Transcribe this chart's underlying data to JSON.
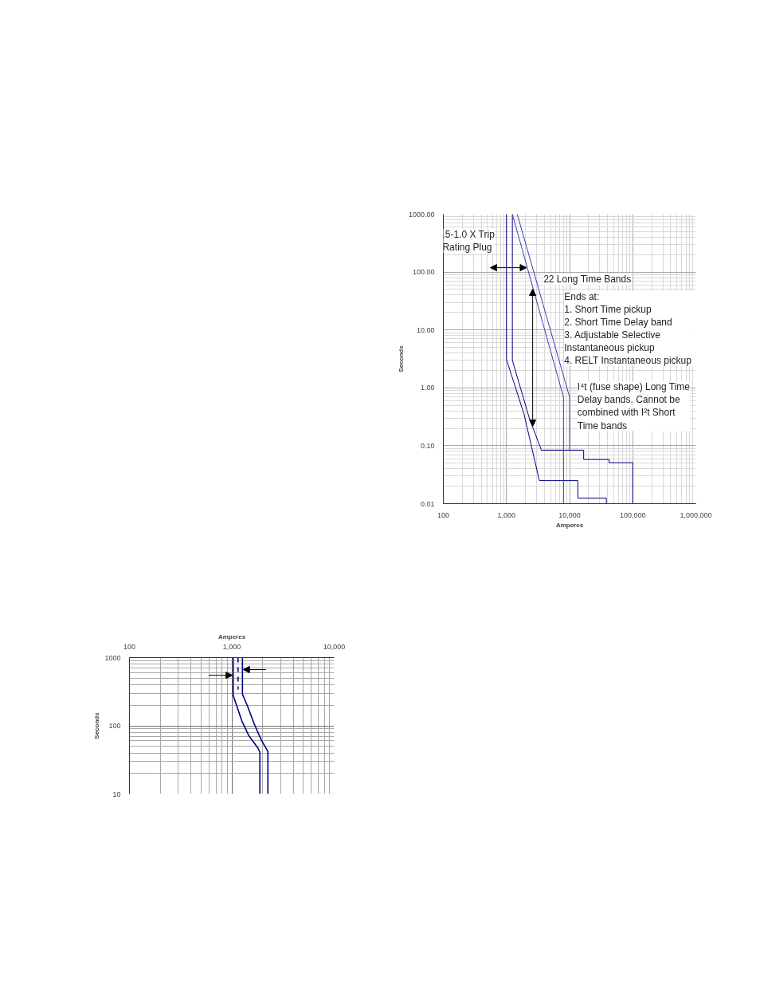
{
  "chart_data": [
    {
      "type": "line",
      "xlabel": "Amperes",
      "ylabel": "Seconds",
      "log": "xy",
      "grid": true,
      "xlim": [
        100,
        1000000
      ],
      "ylim": [
        0.01,
        1000
      ],
      "xticks": [
        100,
        {
          "value": 1000,
          "label": "1,000"
        },
        {
          "value": 10000,
          "label": "10,000"
        },
        {
          "value": 100000,
          "label": "100,000"
        },
        {
          "value": 1000000,
          "label": "1,000,000"
        }
      ],
      "yticks": [
        {
          "value": 0.01,
          "label": "0.01"
        },
        {
          "value": 0.1,
          "label": "0.10"
        },
        {
          "value": 1,
          "label": "1.00"
        },
        {
          "value": 10,
          "label": "10.00"
        },
        {
          "value": 100,
          "label": "100.00"
        },
        {
          "value": 1000,
          "label": "1000.00"
        }
      ],
      "series": [
        {
          "color": "#000080",
          "x": [
            1000,
            1000,
            1900,
            3320,
            13500,
            13500,
            38200,
            38200
          ],
          "values": [
            1000,
            3.1,
            0.35,
            0.025,
            0.025,
            0.0125,
            0.0125,
            0.01
          ]
        },
        {
          "color": "#000080",
          "x": [
            1240,
            1240,
            2300,
            3570,
            16700,
            16700,
            42300,
            42300,
            100000,
            100000
          ],
          "values": [
            1000,
            3.0,
            0.3,
            0.084,
            0.084,
            0.058,
            0.058,
            0.051,
            0.051,
            0.01
          ]
        },
        {
          "color": "#3c3cb4",
          "x": [
            1240,
            8000,
            8000
          ],
          "values": [
            1000,
            0.69,
            0.01
          ]
        },
        {
          "color": "#3c3cb4",
          "x": [
            1480,
            10000,
            10000
          ],
          "values": [
            1000,
            0.69,
            0.084
          ]
        }
      ],
      "annotations": [
        ".5-1.0 X Trip\nRating Plug",
        "22 Long Time Bands",
        "Ends at:\n1.   Short Time pickup\n2.   Short Time Delay band\n3.   Adjustable Selective\n      Instantaneous pickup\n4.   RELT Instantaneous pickup",
        "I⁴t (fuse shape) Long Time\nDelay bands. Cannot be\ncombined with I²t Short\nTime bands"
      ]
    },
    {
      "type": "line",
      "xlabel": "Amperes",
      "ylabel": "Seconds",
      "log": "xy",
      "grid": true,
      "xlim": [
        100,
        10000
      ],
      "ylim": [
        10,
        1000
      ],
      "xticks": [
        100,
        {
          "value": 1000,
          "label": "1,000"
        },
        {
          "value": 10000,
          "label": "10,000"
        }
      ],
      "yticks": [
        10,
        100,
        1000
      ],
      "series": [
        {
          "color": "#000080",
          "x": [
            1030,
            1030,
            1110,
            1250,
            1456,
            1800,
            1880,
            1880
          ],
          "values": [
            1000,
            280,
            201,
            119,
            73,
            47,
            41.4,
            10
          ]
        },
        {
          "color": "#000080",
          "x": [
            1150,
            1150
          ],
          "values": [
            1000,
            340
          ],
          "line_style": "dashed"
        },
        {
          "color": "#000080",
          "x": [
            1270,
            1270,
            1438,
            1643,
            1946,
            2250,
            2250
          ],
          "values": [
            1000,
            290,
            187,
            109,
            61.5,
            42.2,
            10
          ]
        }
      ]
    }
  ]
}
